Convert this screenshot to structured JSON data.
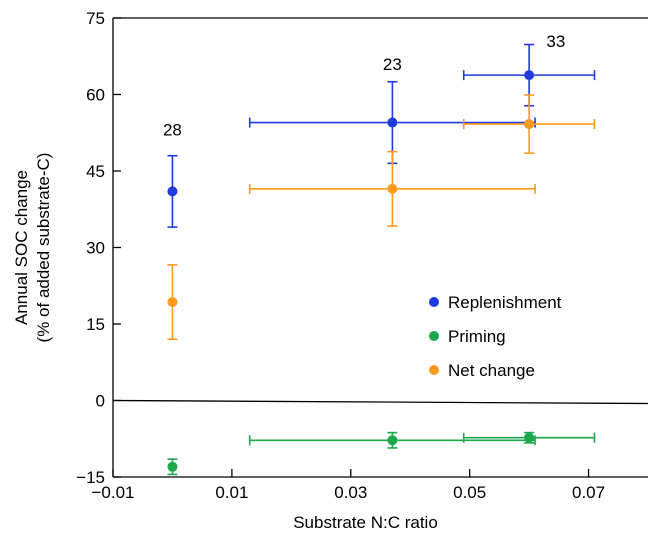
{
  "chart_data": {
    "type": "scatter",
    "xlabel": "Substrate N:C ratio",
    "ylabel_lines": [
      "Annual SOC change",
      "(% of added substrate-C)"
    ],
    "xlim": [
      -0.01,
      0.08
    ],
    "ylim": [
      -15,
      75
    ],
    "xticks": [
      -0.01,
      0.01,
      0.03,
      0.05,
      0.07
    ],
    "xtick_labels": [
      "−0.01",
      "0.01",
      "0.03",
      "0.05",
      "0.07"
    ],
    "yticks": [
      -15,
      0,
      15,
      30,
      45,
      60,
      75
    ],
    "ytick_labels": [
      "−15",
      "0",
      "15",
      "30",
      "45",
      "60",
      "75"
    ],
    "zero_line": true,
    "legend_position": "right-middle",
    "series": [
      {
        "name": "Replenishment",
        "color": "#1f3be0",
        "points": [
          {
            "x": 0.0,
            "y": 41.0,
            "xerr": 0.0,
            "yerr": 7.0
          },
          {
            "x": 0.037,
            "y": 54.5,
            "xerr": 0.024,
            "yerr": 8.0
          },
          {
            "x": 0.06,
            "y": 63.8,
            "xerr": 0.011,
            "yerr": 6.0
          }
        ]
      },
      {
        "name": "Priming",
        "color": "#1aa84a",
        "points": [
          {
            "x": 0.0,
            "y": -13.0,
            "xerr": 0.0,
            "yerr": 1.5
          },
          {
            "x": 0.037,
            "y": -7.8,
            "xerr": 0.024,
            "yerr": 1.5
          },
          {
            "x": 0.06,
            "y": -7.3,
            "xerr": 0.011,
            "yerr": 1.0
          }
        ]
      },
      {
        "name": "Net change",
        "color": "#ff9a1a",
        "points": [
          {
            "x": 0.0,
            "y": 19.3,
            "xerr": 0.0,
            "yerr": 7.3
          },
          {
            "x": 0.037,
            "y": 41.5,
            "xerr": 0.024,
            "yerr": 7.3
          },
          {
            "x": 0.06,
            "y": 54.2,
            "xerr": 0.011,
            "yerr": 5.7
          }
        ]
      }
    ],
    "annotations": [
      {
        "text": "28",
        "x": 0.0,
        "y": 52.0
      },
      {
        "text": "23",
        "x": 0.037,
        "y": 64.8
      },
      {
        "text": "33",
        "x": 0.0645,
        "y": 69.3
      }
    ]
  }
}
